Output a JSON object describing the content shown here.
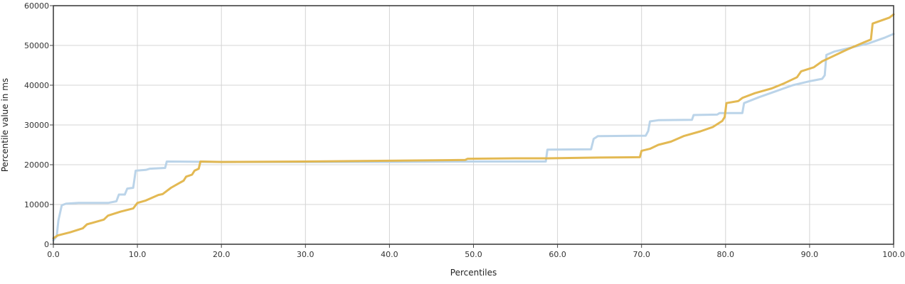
{
  "chart_data": {
    "type": "line",
    "title": "",
    "xlabel": "Percentiles",
    "ylabel": "Percentile value in ms",
    "xlim": [
      0,
      100
    ],
    "ylim": [
      0,
      60000
    ],
    "x_ticks": [
      0,
      10,
      20,
      30,
      40,
      50,
      60,
      70,
      80,
      90,
      100
    ],
    "x_tick_labels": [
      "0.0",
      "10.0",
      "20.0",
      "30.0",
      "40.0",
      "50.0",
      "60.0",
      "70.0",
      "80.0",
      "90.0",
      "100.0"
    ],
    "y_ticks": [
      0,
      10000,
      20000,
      30000,
      40000,
      50000,
      60000
    ],
    "y_tick_labels": [
      "0",
      "10000",
      "20000",
      "30000",
      "40000",
      "50000",
      "60000"
    ],
    "grid": true,
    "legend": "none",
    "series": [
      {
        "color": "#b7d2e8",
        "points": [
          [
            0.0,
            1000
          ],
          [
            0.4,
            2000
          ],
          [
            0.6,
            6000
          ],
          [
            1.0,
            9800
          ],
          [
            1.5,
            10200
          ],
          [
            3.0,
            10400
          ],
          [
            6.5,
            10400
          ],
          [
            7.5,
            10800
          ],
          [
            7.8,
            12500
          ],
          [
            8.5,
            12500
          ],
          [
            8.8,
            14000
          ],
          [
            9.5,
            14200
          ],
          [
            9.8,
            18500
          ],
          [
            11.0,
            18700
          ],
          [
            11.5,
            19000
          ],
          [
            13.3,
            19200
          ],
          [
            13.5,
            20800
          ],
          [
            20.0,
            20700
          ],
          [
            30.0,
            20700
          ],
          [
            40.0,
            20700
          ],
          [
            50.0,
            20800
          ],
          [
            58.6,
            20800
          ],
          [
            58.8,
            23800
          ],
          [
            64.0,
            23900
          ],
          [
            64.3,
            26500
          ],
          [
            64.8,
            27200
          ],
          [
            70.5,
            27300
          ],
          [
            70.8,
            28500
          ],
          [
            71.0,
            30900
          ],
          [
            72.0,
            31200
          ],
          [
            76.0,
            31300
          ],
          [
            76.2,
            32500
          ],
          [
            79.0,
            32600
          ],
          [
            79.3,
            33000
          ],
          [
            82.0,
            33000
          ],
          [
            82.2,
            35500
          ],
          [
            84.0,
            37000
          ],
          [
            86.0,
            38500
          ],
          [
            88.0,
            40000
          ],
          [
            90.0,
            41000
          ],
          [
            91.5,
            41600
          ],
          [
            91.8,
            42500
          ],
          [
            92.0,
            47600
          ],
          [
            93.0,
            48500
          ],
          [
            95.0,
            49500
          ],
          [
            97.0,
            50500
          ],
          [
            99.0,
            52000
          ],
          [
            100.0,
            52900
          ]
        ]
      },
      {
        "color": "#e2b54a",
        "points": [
          [
            0.0,
            1500
          ],
          [
            0.5,
            2200
          ],
          [
            2.0,
            3000
          ],
          [
            3.5,
            4000
          ],
          [
            4.0,
            5000
          ],
          [
            6.0,
            6200
          ],
          [
            6.5,
            7200
          ],
          [
            8.0,
            8200
          ],
          [
            9.5,
            9000
          ],
          [
            10.0,
            10400
          ],
          [
            11.0,
            11000
          ],
          [
            12.5,
            12400
          ],
          [
            13.0,
            12600
          ],
          [
            14.0,
            14200
          ],
          [
            15.5,
            16000
          ],
          [
            15.8,
            17000
          ],
          [
            16.5,
            17500
          ],
          [
            16.8,
            18500
          ],
          [
            17.3,
            19000
          ],
          [
            17.5,
            20800
          ],
          [
            20.0,
            20700
          ],
          [
            30.0,
            20800
          ],
          [
            40.0,
            21000
          ],
          [
            49.0,
            21200
          ],
          [
            49.3,
            21500
          ],
          [
            55.0,
            21600
          ],
          [
            58.8,
            21600
          ],
          [
            65.0,
            21800
          ],
          [
            69.8,
            21900
          ],
          [
            70.0,
            23500
          ],
          [
            71.0,
            24000
          ],
          [
            72.0,
            25000
          ],
          [
            73.5,
            25800
          ],
          [
            75.0,
            27200
          ],
          [
            77.0,
            28400
          ],
          [
            78.5,
            29500
          ],
          [
            79.6,
            31000
          ],
          [
            79.9,
            32000
          ],
          [
            80.1,
            35500
          ],
          [
            81.5,
            36000
          ],
          [
            82.0,
            36800
          ],
          [
            83.5,
            38000
          ],
          [
            85.5,
            39200
          ],
          [
            87.0,
            40500
          ],
          [
            88.5,
            42000
          ],
          [
            89.0,
            43500
          ],
          [
            90.5,
            44500
          ],
          [
            91.5,
            46000
          ],
          [
            92.5,
            47000
          ],
          [
            94.5,
            49000
          ],
          [
            96.5,
            50800
          ],
          [
            97.3,
            51500
          ],
          [
            97.5,
            55500
          ],
          [
            99.5,
            57000
          ],
          [
            100.0,
            57800
          ]
        ]
      }
    ]
  }
}
